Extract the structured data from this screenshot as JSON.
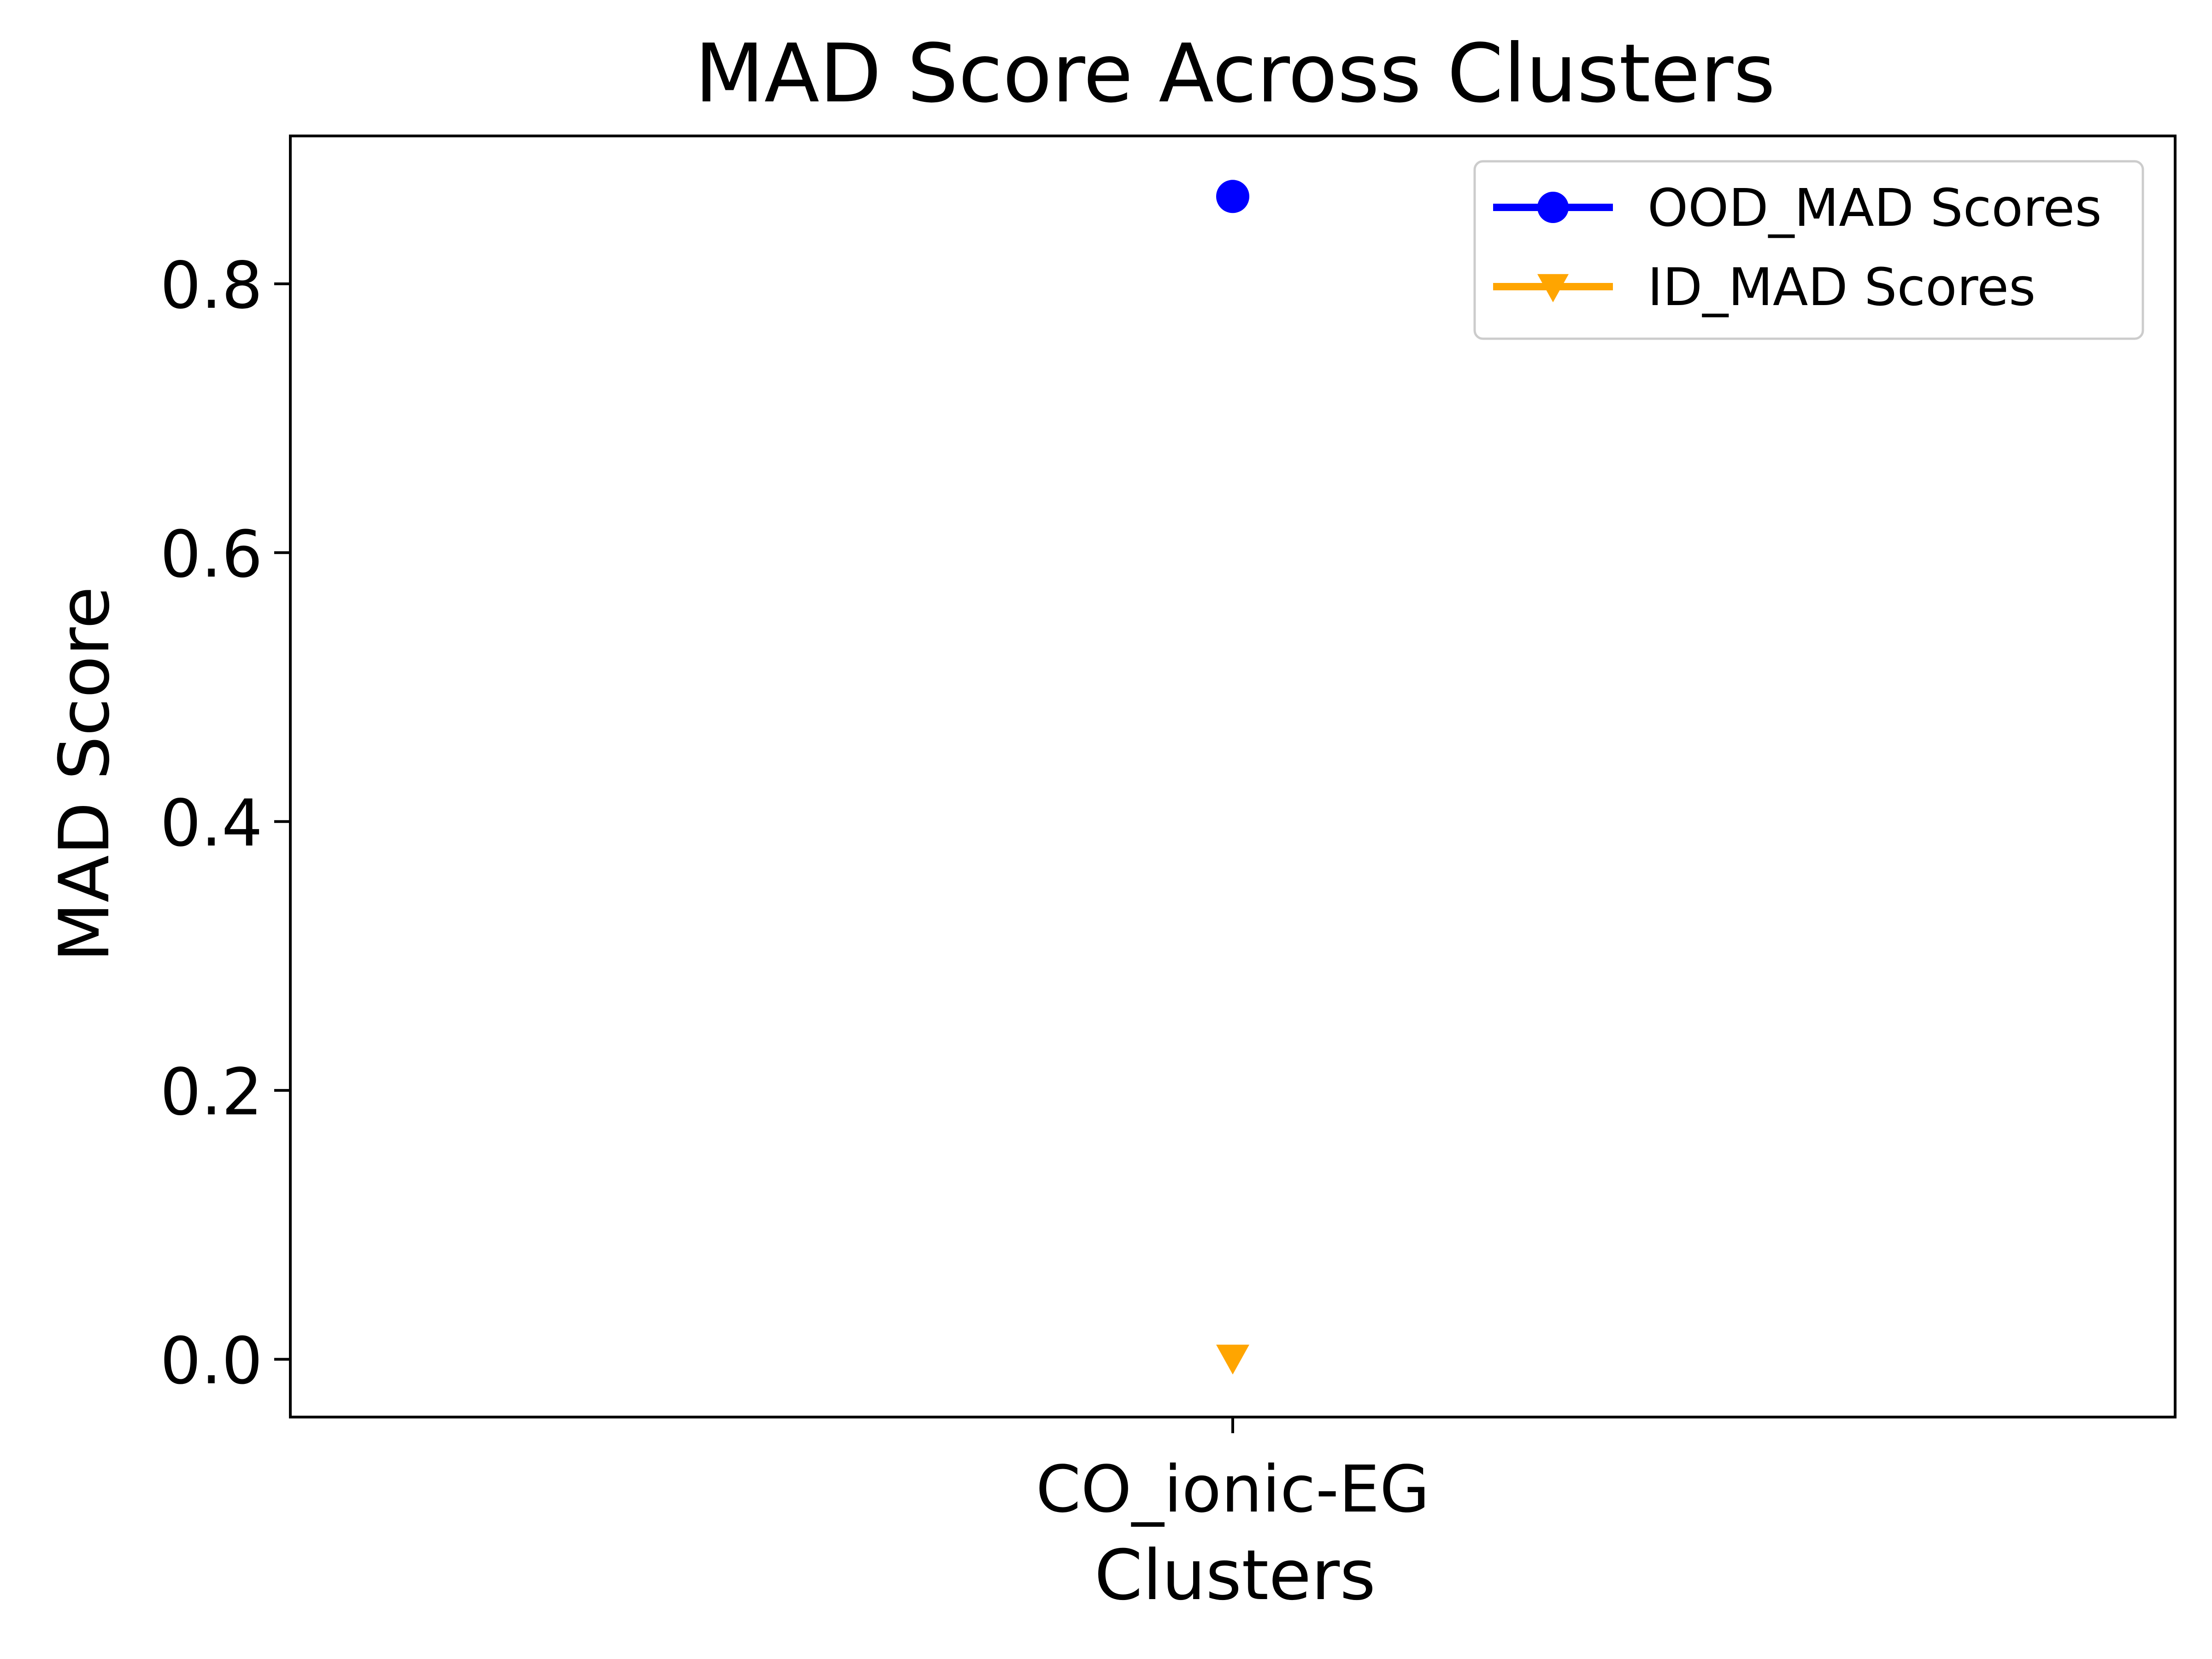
{
  "chart_data": {
    "type": "line",
    "title": "MAD Score Across Clusters",
    "xlabel": "Clusters",
    "ylabel": "MAD Score",
    "categories": [
      "CO_ionic-EG"
    ],
    "ylim": [
      -0.043,
      0.91
    ],
    "yticks": [
      0.0,
      0.2,
      0.4,
      0.6,
      0.8
    ],
    "ytick_labels": [
      "0.0",
      "0.2",
      "0.4",
      "0.6",
      "0.8"
    ],
    "grid": false,
    "legend_position": "top-right",
    "series": [
      {
        "name": "OOD_MAD Scores",
        "values": [
          0.865
        ],
        "color": "#0000ff",
        "marker": "circle"
      },
      {
        "name": "ID_MAD Scores",
        "values": [
          0.001
        ],
        "color": "#ffa500",
        "marker": "triangle-down"
      }
    ]
  }
}
